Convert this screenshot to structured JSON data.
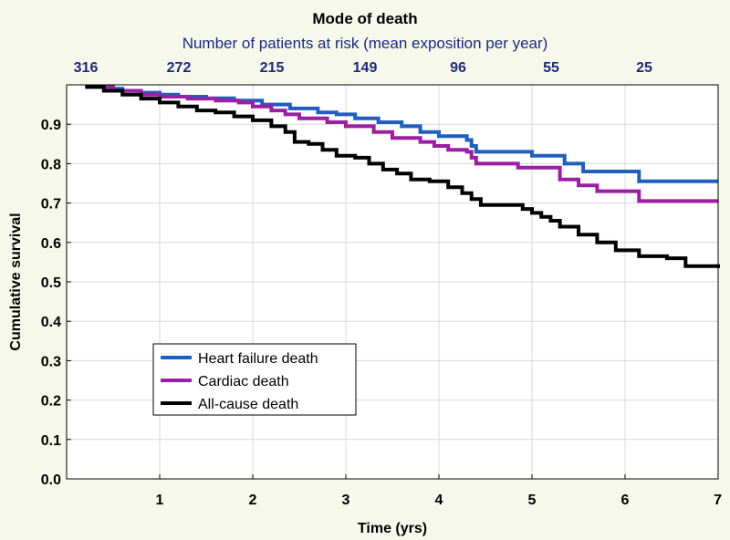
{
  "chart_data": {
    "type": "line",
    "title": "Mode of death",
    "subtitle": "Number of patients at risk (mean exposition per year)",
    "xlabel": "Time (yrs)",
    "ylabel": "Cumulative survival",
    "xlim": [
      0,
      7
    ],
    "ylim": [
      0,
      1
    ],
    "xticks": [
      1,
      2,
      3,
      4,
      5,
      6,
      7
    ],
    "yticks": [
      0.0,
      0.1,
      0.2,
      0.3,
      0.4,
      0.5,
      0.6,
      0.7,
      0.8,
      0.9
    ],
    "ytick_labels": [
      "0.0",
      "0.1",
      "0.2",
      "0.3",
      "0.4",
      "0.5",
      "0.6",
      "0.7",
      "0.8",
      "0.9"
    ],
    "grid": true,
    "legend_position": "bottom-left",
    "at_risk": [
      {
        "x": 0.5,
        "n": "316"
      },
      {
        "x": 1.5,
        "n": "272"
      },
      {
        "x": 2.5,
        "n": "215"
      },
      {
        "x": 3.5,
        "n": "149"
      },
      {
        "x": 4.5,
        "n": "96"
      },
      {
        "x": 5.5,
        "n": "55"
      },
      {
        "x": 6.5,
        "n": "25"
      }
    ],
    "series": [
      {
        "name": "Heart failure death",
        "color": "#1f5fbf",
        "points": [
          [
            0.2,
            0.995
          ],
          [
            0.5,
            0.99
          ],
          [
            0.6,
            0.985
          ],
          [
            0.8,
            0.98
          ],
          [
            1.0,
            0.975
          ],
          [
            1.2,
            0.97
          ],
          [
            1.5,
            0.966
          ],
          [
            1.8,
            0.96
          ],
          [
            2.1,
            0.95
          ],
          [
            2.4,
            0.94
          ],
          [
            2.7,
            0.93
          ],
          [
            2.9,
            0.925
          ],
          [
            3.1,
            0.915
          ],
          [
            3.35,
            0.905
          ],
          [
            3.6,
            0.895
          ],
          [
            3.8,
            0.88
          ],
          [
            4.0,
            0.87
          ],
          [
            4.3,
            0.86
          ],
          [
            4.35,
            0.845
          ],
          [
            4.4,
            0.83
          ],
          [
            4.7,
            0.83
          ],
          [
            5.0,
            0.82
          ],
          [
            5.3,
            0.82
          ],
          [
            5.35,
            0.8
          ],
          [
            5.55,
            0.78
          ],
          [
            5.9,
            0.78
          ],
          [
            6.15,
            0.755
          ],
          [
            6.5,
            0.755
          ],
          [
            7.0,
            0.755
          ]
        ]
      },
      {
        "name": "Cardiac death",
        "color": "#9b1fa3",
        "points": [
          [
            0.2,
            0.995
          ],
          [
            0.5,
            0.985
          ],
          [
            0.8,
            0.975
          ],
          [
            1.0,
            0.97
          ],
          [
            1.3,
            0.965
          ],
          [
            1.6,
            0.96
          ],
          [
            1.85,
            0.955
          ],
          [
            2.0,
            0.945
          ],
          [
            2.2,
            0.935
          ],
          [
            2.35,
            0.925
          ],
          [
            2.5,
            0.915
          ],
          [
            2.8,
            0.905
          ],
          [
            3.0,
            0.895
          ],
          [
            3.3,
            0.88
          ],
          [
            3.5,
            0.865
          ],
          [
            3.8,
            0.855
          ],
          [
            3.95,
            0.845
          ],
          [
            4.1,
            0.835
          ],
          [
            4.3,
            0.83
          ],
          [
            4.35,
            0.815
          ],
          [
            4.4,
            0.8
          ],
          [
            4.65,
            0.8
          ],
          [
            4.85,
            0.79
          ],
          [
            5.2,
            0.79
          ],
          [
            5.3,
            0.76
          ],
          [
            5.5,
            0.745
          ],
          [
            5.7,
            0.73
          ],
          [
            6.15,
            0.705
          ],
          [
            6.5,
            0.705
          ],
          [
            7.0,
            0.705
          ]
        ]
      },
      {
        "name": "All-cause death",
        "color": "#000000",
        "points": [
          [
            0.2,
            0.995
          ],
          [
            0.4,
            0.985
          ],
          [
            0.6,
            0.975
          ],
          [
            0.8,
            0.965
          ],
          [
            1.0,
            0.955
          ],
          [
            1.2,
            0.945
          ],
          [
            1.4,
            0.935
          ],
          [
            1.6,
            0.93
          ],
          [
            1.8,
            0.92
          ],
          [
            2.0,
            0.91
          ],
          [
            2.2,
            0.895
          ],
          [
            2.35,
            0.88
          ],
          [
            2.45,
            0.855
          ],
          [
            2.6,
            0.85
          ],
          [
            2.75,
            0.835
          ],
          [
            2.9,
            0.82
          ],
          [
            3.1,
            0.815
          ],
          [
            3.25,
            0.8
          ],
          [
            3.4,
            0.785
          ],
          [
            3.55,
            0.775
          ],
          [
            3.7,
            0.76
          ],
          [
            3.9,
            0.755
          ],
          [
            4.1,
            0.74
          ],
          [
            4.25,
            0.725
          ],
          [
            4.35,
            0.71
          ],
          [
            4.45,
            0.695
          ],
          [
            4.7,
            0.695
          ],
          [
            4.9,
            0.685
          ],
          [
            5.0,
            0.675
          ],
          [
            5.1,
            0.665
          ],
          [
            5.2,
            0.655
          ],
          [
            5.3,
            0.64
          ],
          [
            5.5,
            0.62
          ],
          [
            5.7,
            0.6
          ],
          [
            5.9,
            0.58
          ],
          [
            6.15,
            0.565
          ],
          [
            6.45,
            0.56
          ],
          [
            6.65,
            0.54
          ],
          [
            7.0,
            0.535
          ]
        ]
      }
    ]
  }
}
